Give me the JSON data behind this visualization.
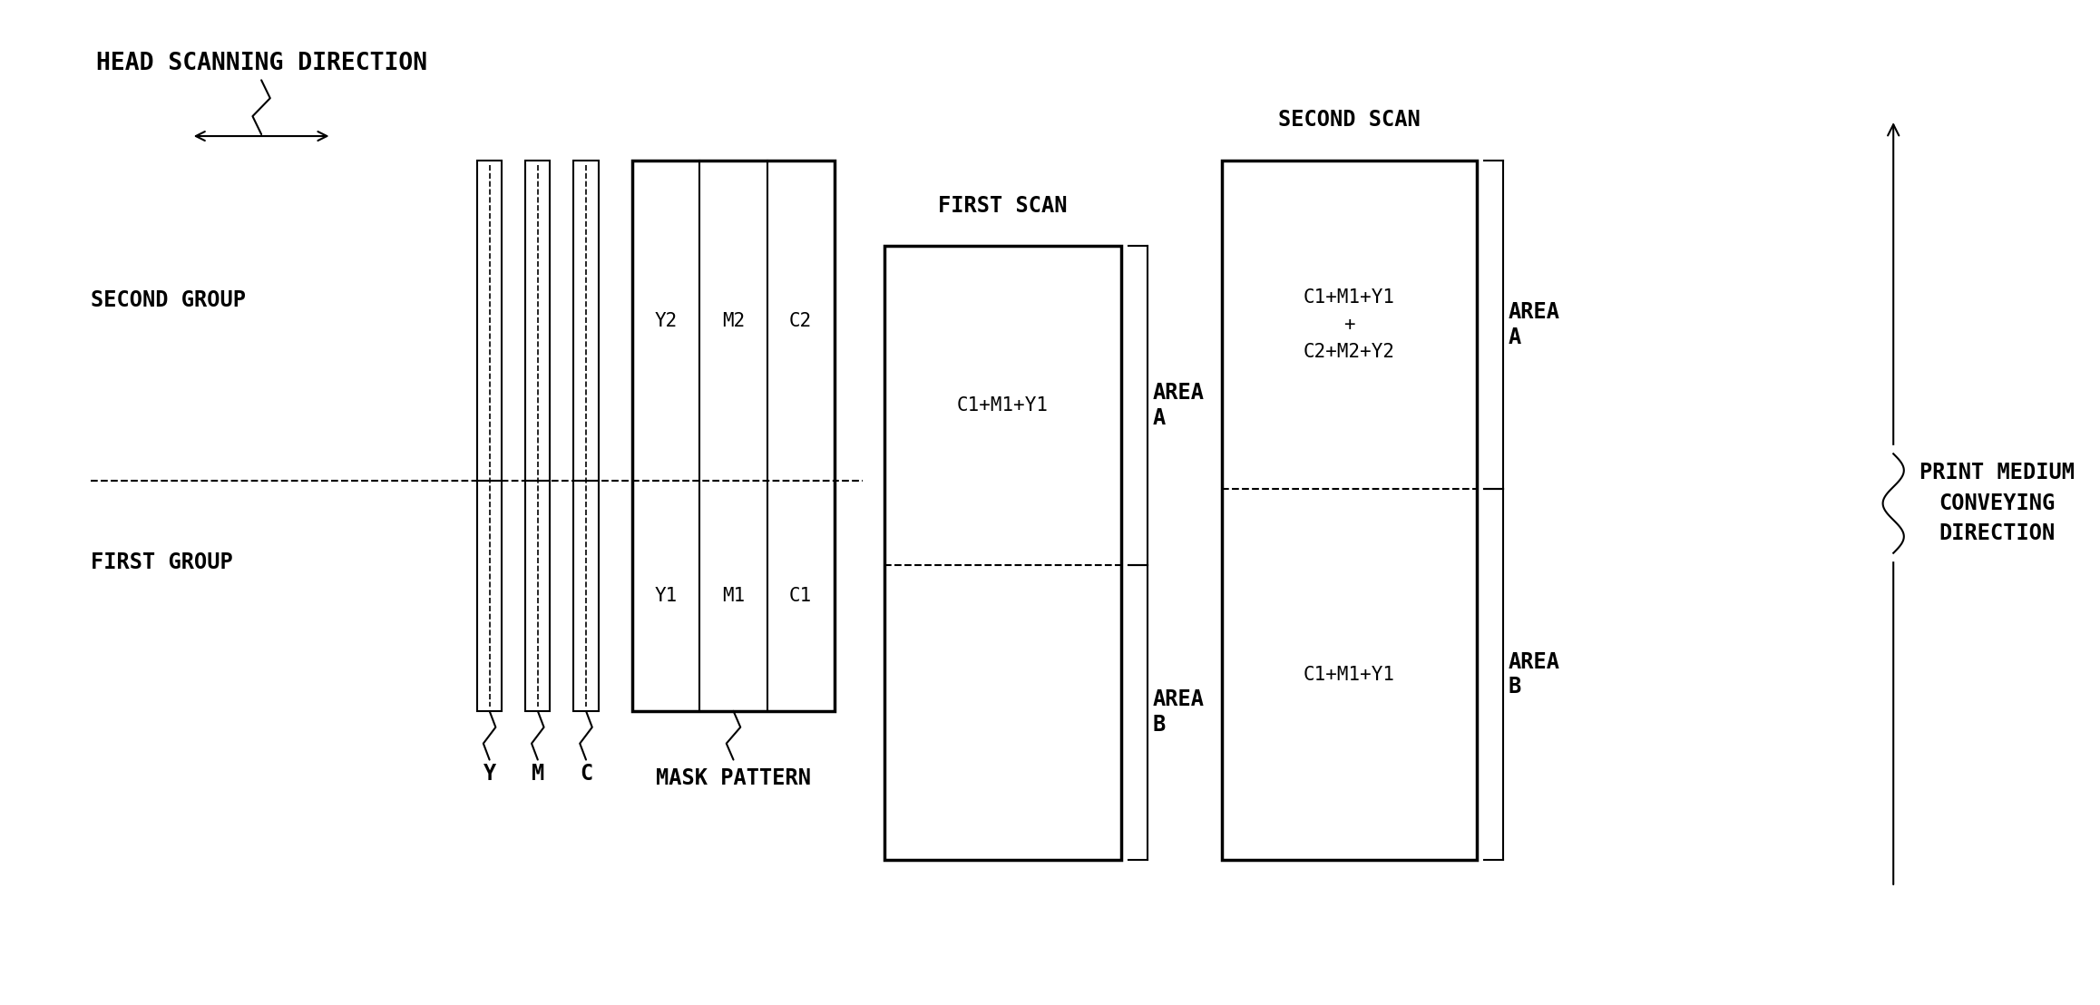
{
  "bg_color": "#ffffff",
  "text_color": "#000000",
  "head_scan_dir": "HEAD SCANNING DIRECTION",
  "second_group_label": "SECOND GROUP",
  "first_group_label": "FIRST GROUP",
  "mask_pattern_label": "MASK PATTERN",
  "mask_col_top": [
    "Y2",
    "M2",
    "C2"
  ],
  "mask_col_bot": [
    "Y1",
    "M1",
    "C1"
  ],
  "strip_labels": [
    "Y",
    "M",
    "C"
  ],
  "first_scan_label": "FIRST SCAN",
  "first_scan_text_a": "C1+M1+Y1",
  "second_scan_label": "SECOND SCAN",
  "second_scan_text_a": "C1+M1+Y1\n+\nC2+M2+Y2",
  "second_scan_text_b": "C1+M1+Y1",
  "area_a_label": "AREA\nA",
  "area_b_label": "AREA\nB",
  "print_medium_label": "PRINT MEDIUM\nCONVEYING\nDIRECTION"
}
